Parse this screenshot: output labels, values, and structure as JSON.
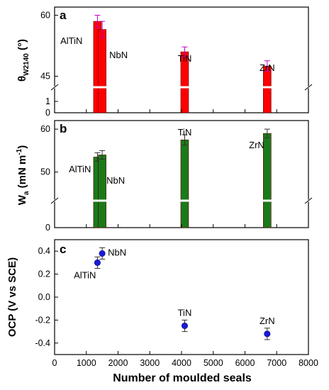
{
  "chart_data": [
    {
      "panel": "a",
      "type": "bar",
      "ylabel_main": "θ",
      "ylabel_sub": "W2140",
      "ylabel_unit": " (°)",
      "axis_break": {
        "low": [
          0,
          2
        ],
        "high": [
          43,
          62
        ]
      },
      "yticks": [
        0,
        1,
        45,
        60
      ],
      "bar_color": "#ff0000",
      "bars": [
        {
          "label": "AlTiN",
          "x": 1350,
          "value": 58.5,
          "err": 1.5
        },
        {
          "label": "NbN",
          "x": 1500,
          "value": 56.5,
          "err": 2.0
        },
        {
          "label": "TiN",
          "x": 4100,
          "value": 51.0,
          "err": 1.2
        },
        {
          "label": "ZrN",
          "x": 6700,
          "value": 47.5,
          "err": 1.3
        }
      ]
    },
    {
      "panel": "b",
      "type": "bar",
      "ylabel_main": "W",
      "ylabel_sub": "a",
      "ylabel_unit": " (mN m",
      "ylabel_sup": "-1",
      "ylabel_close": ")",
      "axis_break": {
        "low": [
          0,
          5
        ],
        "high": [
          44,
          62
        ]
      },
      "yticks": [
        0,
        50,
        60
      ],
      "bar_color": "#1a7a1a",
      "bars": [
        {
          "label": "AlTiN",
          "x": 1350,
          "value": 53.5,
          "err": 1.0
        },
        {
          "label": "NbN",
          "x": 1500,
          "value": 54.0,
          "err": 1.0
        },
        {
          "label": "TiN",
          "x": 4100,
          "value": 57.5,
          "err": 1.2
        },
        {
          "label": "ZrN",
          "x": 6700,
          "value": 59.0,
          "err": 1.0
        }
      ]
    },
    {
      "panel": "c",
      "type": "scatter",
      "ylabel": "OCP (V vs SCE)",
      "xlabel": "Number of moulded seals",
      "xlim": [
        0,
        8000
      ],
      "ylim": [
        -0.5,
        0.5
      ],
      "xticks": [
        0,
        1000,
        2000,
        3000,
        4000,
        5000,
        6000,
        7000,
        8000
      ],
      "yticks": [
        -0.4,
        -0.2,
        0.0,
        0.2,
        0.4
      ],
      "marker_color": "#1a1adc",
      "points": [
        {
          "label": "AlTiN",
          "x": 1350,
          "y": 0.3,
          "err": 0.05
        },
        {
          "label": "NbN",
          "x": 1500,
          "y": 0.38,
          "err": 0.05
        },
        {
          "label": "TiN",
          "x": 4100,
          "y": -0.25,
          "err": 0.05
        },
        {
          "label": "ZrN",
          "x": 6700,
          "y": -0.32,
          "err": 0.05
        }
      ]
    }
  ]
}
